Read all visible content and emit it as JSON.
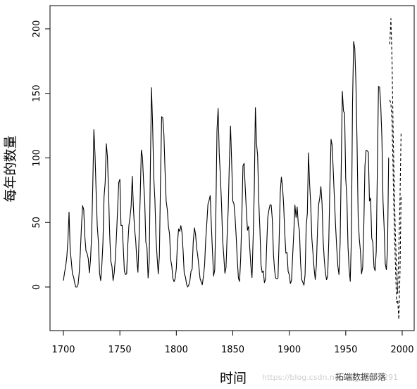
{
  "chart_data": {
    "type": "line",
    "title": "",
    "xlabel": "时间",
    "ylabel": "每年的数量",
    "xlim": [
      1700,
      2000
    ],
    "ylim": [
      -25,
      210
    ],
    "xticks": [
      1700,
      1750,
      1800,
      1850,
      1900,
      1950,
      2000
    ],
    "yticks": [
      0,
      50,
      100,
      150,
      200
    ],
    "grid": false,
    "legend": "none",
    "series": [
      {
        "style": "solid",
        "x": [
          1700,
          1701,
          1702,
          1703,
          1704,
          1705,
          1706,
          1707,
          1708,
          1709,
          1710,
          1711,
          1712,
          1713,
          1714,
          1715,
          1716,
          1717,
          1718,
          1719,
          1720,
          1721,
          1722,
          1723,
          1724,
          1725,
          1726,
          1727,
          1728,
          1729,
          1730,
          1731,
          1732,
          1733,
          1734,
          1735,
          1736,
          1737,
          1738,
          1739,
          1740,
          1741,
          1742,
          1743,
          1744,
          1745,
          1746,
          1747,
          1748,
          1749,
          1750,
          1751,
          1752,
          1753,
          1754,
          1755,
          1756,
          1757,
          1758,
          1759,
          1760,
          1761,
          1762,
          1763,
          1764,
          1765,
          1766,
          1767,
          1768,
          1769,
          1770,
          1771,
          1772,
          1773,
          1774,
          1775,
          1776,
          1777,
          1778,
          1779,
          1780,
          1781,
          1782,
          1783,
          1784,
          1785,
          1786,
          1787,
          1788,
          1789,
          1790,
          1791,
          1792,
          1793,
          1794,
          1795,
          1796,
          1797,
          1798,
          1799,
          1800,
          1801,
          1802,
          1803,
          1804,
          1805,
          1806,
          1807,
          1808,
          1809,
          1810,
          1811,
          1812,
          1813,
          1814,
          1815,
          1816,
          1817,
          1818,
          1819,
          1820,
          1821,
          1822,
          1823,
          1824,
          1825,
          1826,
          1827,
          1828,
          1829,
          1830,
          1831,
          1832,
          1833,
          1834,
          1835,
          1836,
          1837,
          1838,
          1839,
          1840,
          1841,
          1842,
          1843,
          1844,
          1845,
          1846,
          1847,
          1848,
          1849,
          1850,
          1851,
          1852,
          1853,
          1854,
          1855,
          1856,
          1857,
          1858,
          1859,
          1860,
          1861,
          1862,
          1863,
          1864,
          1865,
          1866,
          1867,
          1868,
          1869,
          1870,
          1871,
          1872,
          1873,
          1874,
          1875,
          1876,
          1877,
          1878,
          1879,
          1880,
          1881,
          1882,
          1883,
          1884,
          1885,
          1886,
          1887,
          1888,
          1889,
          1890,
          1891,
          1892,
          1893,
          1894,
          1895,
          1896,
          1897,
          1898,
          1899,
          1900,
          1901,
          1902,
          1903,
          1904,
          1905,
          1906,
          1907,
          1908,
          1909,
          1910,
          1911,
          1912,
          1913,
          1914,
          1915,
          1916,
          1917,
          1918,
          1919,
          1920,
          1921,
          1922,
          1923,
          1924,
          1925,
          1926,
          1927,
          1928,
          1929,
          1930,
          1931,
          1932,
          1933,
          1934,
          1935,
          1936,
          1937,
          1938,
          1939,
          1940,
          1941,
          1942,
          1943,
          1944,
          1945,
          1946,
          1947,
          1948,
          1949,
          1950,
          1951,
          1952,
          1953,
          1954,
          1955,
          1956,
          1957,
          1958,
          1959,
          1960,
          1961,
          1962,
          1963,
          1964,
          1965,
          1966,
          1967,
          1968,
          1969,
          1970,
          1971,
          1972,
          1973,
          1974,
          1975,
          1976,
          1977,
          1978,
          1979,
          1980,
          1981,
          1982,
          1983,
          1984,
          1985,
          1986,
          1987,
          1988
        ],
        "y": [
          5,
          11,
          16,
          23,
          36,
          58,
          29,
          20,
          10,
          8,
          3,
          0,
          0,
          2,
          11,
          27,
          47,
          63,
          60,
          39,
          28,
          26,
          22,
          11,
          21,
          40,
          78,
          122,
          103,
          73,
          47,
          35,
          11,
          5,
          16,
          34,
          70,
          81,
          111,
          101,
          73,
          40,
          20,
          16,
          5,
          11,
          22,
          40,
          60,
          80.9,
          83.4,
          47.7,
          47.8,
          30.7,
          12.2,
          9.6,
          10.2,
          32.4,
          47.6,
          54,
          62.9,
          85.9,
          61.2,
          45.1,
          36.4,
          20.9,
          11.4,
          37.8,
          69.8,
          106.1,
          100.8,
          81.6,
          66.5,
          34.8,
          30.6,
          7,
          19.8,
          92.5,
          154.4,
          125.9,
          84.8,
          68.1,
          38.5,
          22.8,
          10.2,
          24.1,
          82.9,
          132,
          130.9,
          118.1,
          89.9,
          66.6,
          60,
          46.9,
          41,
          21.3,
          16,
          6.4,
          4.1,
          6.8,
          14.5,
          34,
          45,
          43.1,
          47.5,
          42.2,
          28.1,
          10.1,
          8.1,
          2.5,
          0,
          1.4,
          5,
          12.2,
          13.9,
          35.4,
          45.8,
          41.1,
          30.1,
          23.9,
          15.6,
          6.6,
          4,
          1.8,
          8.5,
          16.6,
          36.3,
          49.6,
          64.2,
          67,
          70.9,
          47.8,
          27.5,
          8.5,
          13.2,
          56.9,
          121.5,
          138.3,
          103.2,
          85.7,
          64.6,
          36.7,
          24.2,
          10.7,
          15,
          40.1,
          61.5,
          98.5,
          124.7,
          96.3,
          66.6,
          64.5,
          54.1,
          39,
          20.6,
          6.7,
          4.3,
          22.7,
          54.8,
          93.8,
          95.8,
          77.2,
          59.1,
          44,
          47,
          30.5,
          16.3,
          7.3,
          37.6,
          74,
          139,
          111.2,
          101.6,
          66.2,
          44.7,
          17,
          11.3,
          12.4,
          3.4,
          6,
          32.3,
          54.3,
          59.7,
          63.7,
          63.5,
          52.2,
          25.4,
          13.1,
          6.8,
          6.3,
          7.1,
          35.6,
          73,
          85.1,
          78,
          64,
          41.8,
          26.2,
          26.7,
          12.1,
          9.5,
          2.7,
          5,
          24.4,
          42,
          63.5,
          53.8,
          62,
          48.5,
          43.9,
          18.6,
          5.7,
          3.6,
          1.4,
          9.6,
          47.4,
          57.1,
          103.9,
          80.6,
          63.6,
          37.6,
          26.1,
          14.2,
          5.8,
          16.7,
          44.3,
          63.9,
          69,
          77.8,
          64.9,
          35.7,
          21.2,
          11.1,
          5.7,
          8.7,
          36.1,
          79.7,
          114.4,
          109.6,
          88.8,
          67.8,
          47.5,
          30.6,
          16.3,
          9.6,
          33.2,
          92.6,
          151.6,
          136.3,
          134.7,
          83.9,
          69.4,
          31.5,
          13.9,
          4.4,
          38,
          141.7,
          190.2,
          184.8,
          159,
          112.3,
          53.9,
          37.5,
          27.9,
          10.2,
          15.1,
          47,
          93.8,
          105.9,
          105.5,
          104.5,
          66.6,
          68.9,
          38,
          34.5,
          15.5,
          12.6,
          27.5,
          92.5,
          155.4,
          154.7,
          140.5,
          115.9,
          66.6,
          45.9,
          17.9,
          13.4,
          29.2,
          100.2
        ]
      },
      {
        "style": "dashed",
        "x": [
          1989,
          1990,
          1991,
          1992,
          1993,
          1994,
          1995,
          1996,
          1997,
          1998,
          1999
        ],
        "y": [
          188,
          208,
          175,
          120,
          75,
          40,
          15,
          -5,
          30,
          65,
          120
        ]
      },
      {
        "style": "dashed",
        "x": [
          1989,
          1990,
          1991,
          1992,
          1993,
          1994,
          1995,
          1996,
          1997,
          1998,
          1999
        ],
        "y": [
          145,
          142,
          128,
          88,
          45,
          18,
          -12,
          -10,
          -25,
          10,
          70
        ]
      }
    ]
  },
  "watermark": {
    "url": "https://blog.csdn.net/qq_19600291",
    "brand": "拓端数据部落"
  }
}
